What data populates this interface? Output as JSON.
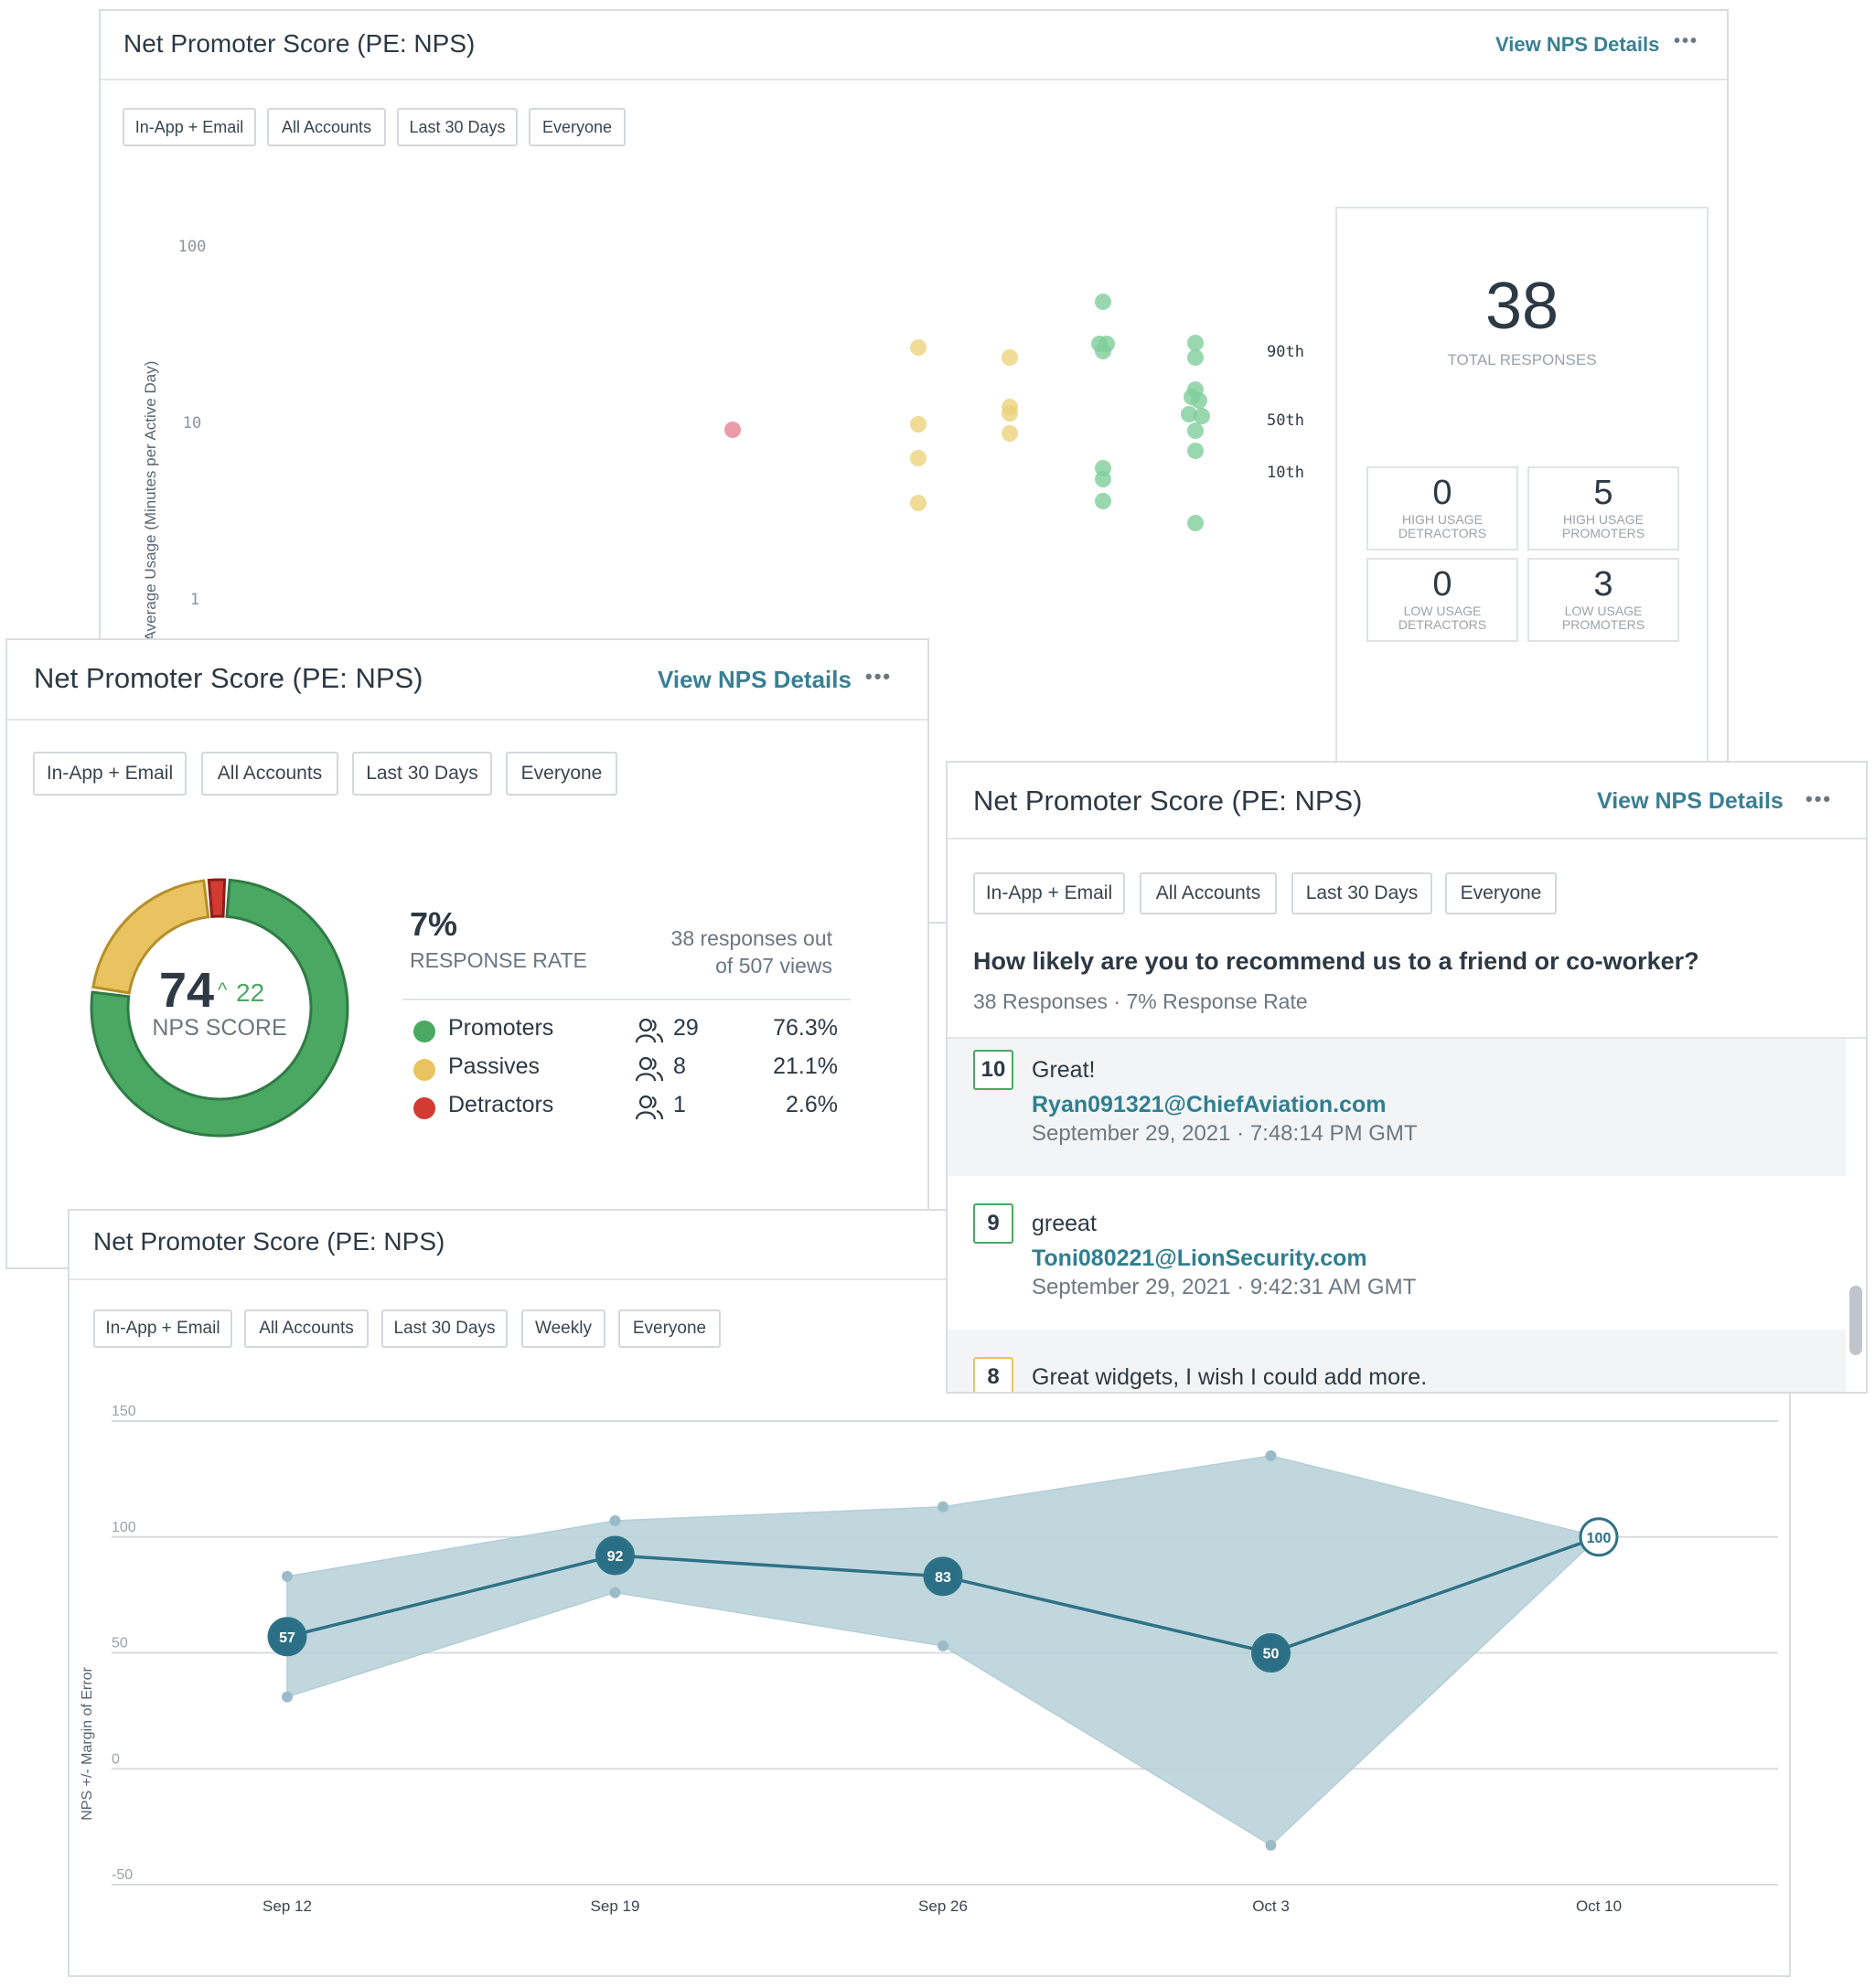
{
  "card_title": "Net Promoter Score (PE: NPS)",
  "view_details": "View NPS Details",
  "menu_dots": "•••",
  "filters_basic": [
    "In-App + Email",
    "All Accounts",
    "Last 30 Days",
    "Everyone"
  ],
  "filters_trend": [
    "In-App + Email",
    "All Accounts",
    "Last 30 Days",
    "Weekly",
    "Everyone"
  ],
  "colors": {
    "promoter": "#4aa863",
    "passive": "#e8c35f",
    "detractor": "#d23a32",
    "accent": "#3a7f93",
    "trend_line": "#2e7287",
    "band": "#b7d1d9"
  },
  "usage_chart": {
    "y_axis_label": "Average Usage (Minutes per Active Day)",
    "y_ticks": [
      "100",
      "10",
      "1"
    ],
    "percentile_labels": [
      "90th",
      "50th",
      "10th"
    ],
    "total_responses": "38",
    "total_label": "TOTAL RESPONSES",
    "stats": [
      {
        "value": "0",
        "label_line1": "HIGH USAGE",
        "label_line2": "DETRACTORS"
      },
      {
        "value": "5",
        "label_line1": "HIGH USAGE",
        "label_line2": "PROMOTERS"
      },
      {
        "value": "0",
        "label_line1": "LOW USAGE",
        "label_line2": "DETRACTORS"
      },
      {
        "value": "3",
        "label_line1": "LOW USAGE",
        "label_line2": "PROMOTERS"
      }
    ]
  },
  "donut": {
    "nps_score": "74",
    "change": "22",
    "nps_label": "NPS SCORE",
    "response_rate": "7%",
    "response_rate_label": "RESPONSE RATE",
    "responses_line1": "38 responses out",
    "responses_line2": "of 507 views",
    "rows": [
      {
        "name": "Promoters",
        "count": "29",
        "pct": "76.3%",
        "fraction": 0.763
      },
      {
        "name": "Passives",
        "count": "8",
        "pct": "21.1%",
        "fraction": 0.211
      },
      {
        "name": "Detractors",
        "count": "1",
        "pct": "2.6%",
        "fraction": 0.026
      }
    ]
  },
  "responses": {
    "question": "How likely are you to recommend us to a friend or co-worker?",
    "meta": "38 Responses · 7% Response Rate",
    "items": [
      {
        "score": "10",
        "text": "Great!",
        "email": "Ryan091321@ChiefAviation.com",
        "date": "September 29, 2021 · 7:48:14 PM GMT",
        "border": "#4aa863"
      },
      {
        "score": "9",
        "text": "greeat",
        "email": "Toni080221@LionSecurity.com",
        "date": "September 29, 2021 · 9:42:31 AM GMT",
        "border": "#4aa863"
      },
      {
        "score": "8",
        "text": "Great widgets, I wish I could add more.",
        "email": "",
        "date": "",
        "border": "#e8c35f"
      }
    ]
  },
  "chart_data": {
    "type": "line",
    "ylabel": "NPS +/- Margin of Error",
    "ylim": [
      -50,
      150
    ],
    "y_ticks": [
      150,
      100,
      50,
      0,
      -50
    ],
    "categories": [
      "Sep 12",
      "Sep 19",
      "Sep 26",
      "Oct 3",
      "Oct 10"
    ],
    "series": [
      {
        "values": [
          57,
          92,
          83,
          50,
          100
        ]
      }
    ],
    "band_upper": [
      83,
      107,
      113,
      135,
      100
    ],
    "band_lower": [
      31,
      76,
      53,
      -33,
      100
    ]
  }
}
